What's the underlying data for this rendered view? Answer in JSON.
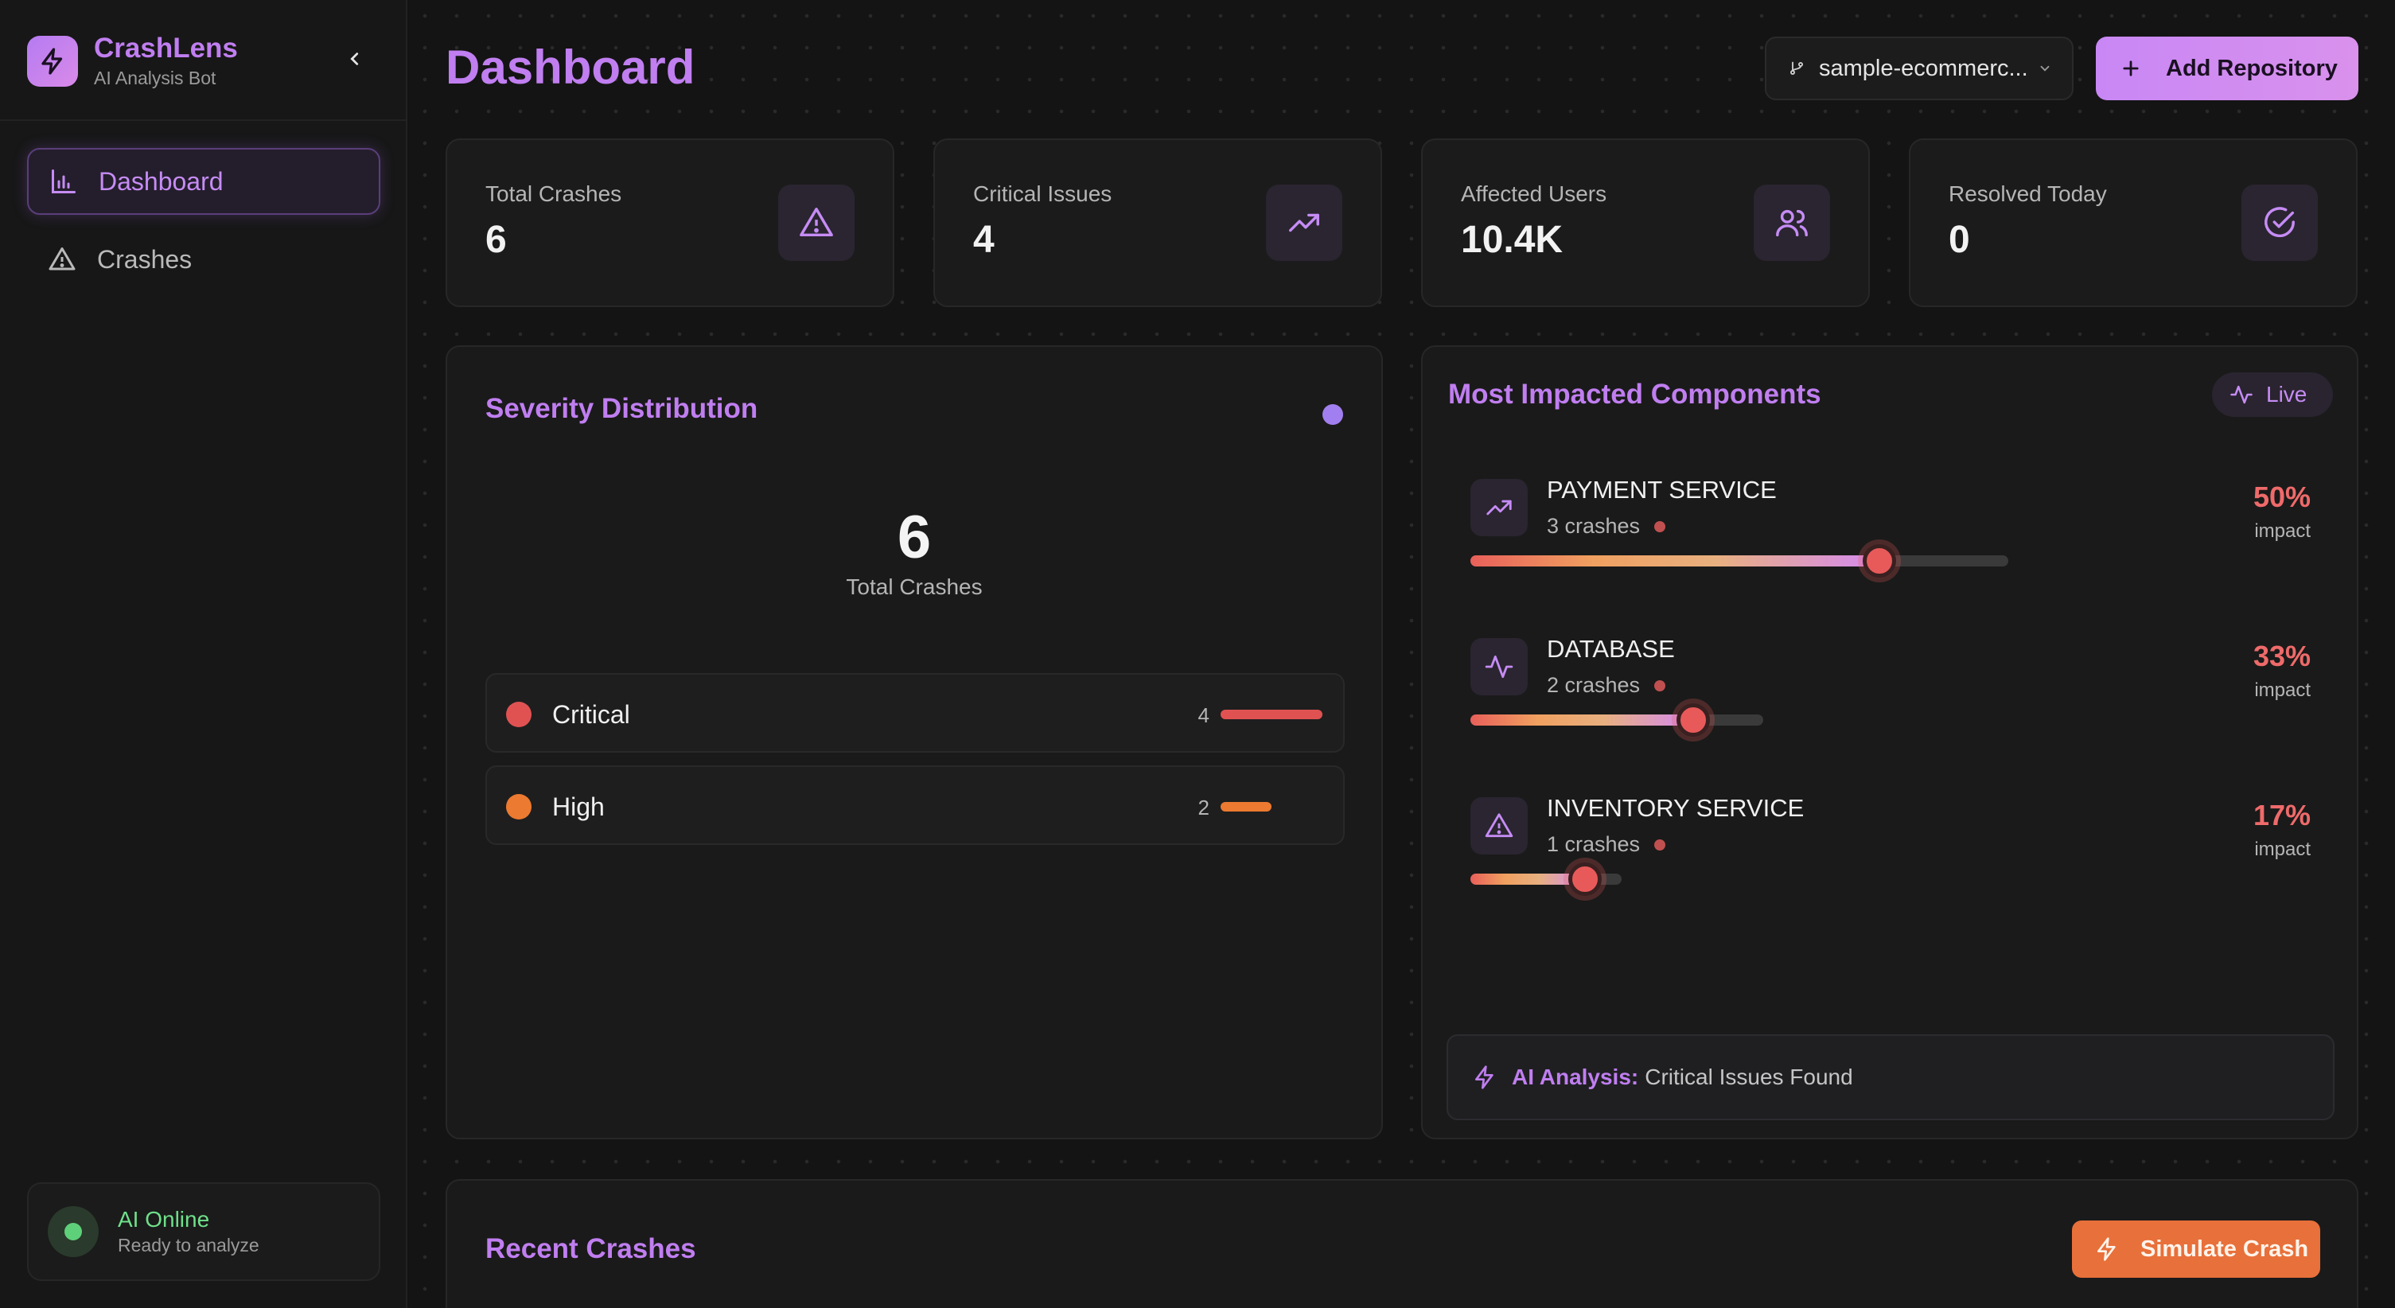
{
  "brand": {
    "name": "CrashLens",
    "subtitle": "AI Analysis Bot"
  },
  "sidebar": {
    "items": [
      {
        "label": "Dashboard",
        "icon": "bar-chart-icon",
        "active": true
      },
      {
        "label": "Crashes",
        "icon": "warning-icon",
        "active": false
      }
    ],
    "status": {
      "title": "AI Online",
      "subtitle": "Ready to analyze"
    }
  },
  "header": {
    "title": "Dashboard",
    "repo_select": "sample-ecommerc...",
    "add_repo_label": "Add Repository"
  },
  "stats": [
    {
      "label": "Total Crashes",
      "value": "6",
      "icon": "warning-icon"
    },
    {
      "label": "Critical Issues",
      "value": "4",
      "icon": "trending-up-icon"
    },
    {
      "label": "Affected Users",
      "value": "10.4K",
      "icon": "users-icon"
    },
    {
      "label": "Resolved Today",
      "value": "0",
      "icon": "check-circle-icon"
    }
  ],
  "severity": {
    "title": "Severity Distribution",
    "total": "6",
    "total_label": "Total Crashes",
    "rows": [
      {
        "name": "Critical",
        "count": "4",
        "color": "#e05252",
        "fill": 1.0
      },
      {
        "name": "High",
        "count": "2",
        "color": "#ec7a30",
        "fill": 0.5
      }
    ]
  },
  "components": {
    "title": "Most Impacted Components",
    "live_label": "Live",
    "items": [
      {
        "name": "PAYMENT SERVICE",
        "crashes": "3 crashes",
        "pct": "50%",
        "impact_label": "impact",
        "icon": "trending-up-icon",
        "impact": 0.5
      },
      {
        "name": "DATABASE",
        "crashes": "2 crashes",
        "pct": "33%",
        "impact_label": "impact",
        "icon": "activity-icon",
        "impact": 0.33
      },
      {
        "name": "INVENTORY SERVICE",
        "crashes": "1 crashes",
        "pct": "17%",
        "impact_label": "impact",
        "icon": "warning-icon",
        "impact": 0.17
      }
    ],
    "ai_analysis": {
      "label": "AI Analysis:",
      "value": "Critical Issues Found"
    }
  },
  "recent": {
    "title": "Recent Crashes",
    "simulate_label": "Simulate Crash"
  },
  "colors": {
    "accent": "#c07ef0",
    "critical": "#e05252",
    "high": "#ec7a30",
    "online": "#5fd07a"
  }
}
